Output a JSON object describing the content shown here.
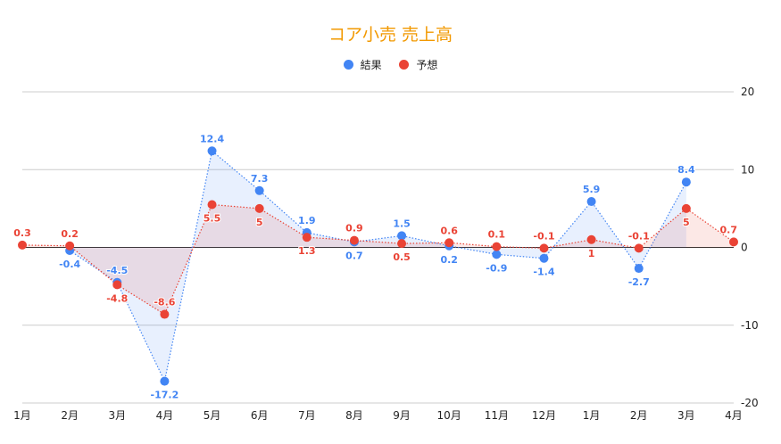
{
  "chart_data": {
    "type": "line",
    "title": "コア小売 売上高",
    "categories": [
      "1月",
      "2月",
      "3月",
      "4月",
      "5月",
      "6月",
      "7月",
      "8月",
      "9月",
      "10月",
      "11月",
      "12月",
      "1月",
      "2月",
      "3月",
      "4月"
    ],
    "series": [
      {
        "name": "結果",
        "color": "#4285f4",
        "values": [
          null,
          -0.4,
          -4.5,
          -17.2,
          12.4,
          7.3,
          1.9,
          0.7,
          1.5,
          0.2,
          -0.9,
          -1.4,
          5.9,
          -2.7,
          8.4,
          null
        ]
      },
      {
        "name": "予想",
        "color": "#ea4335",
        "values": [
          0.3,
          0.2,
          -4.8,
          -8.6,
          5.5,
          5,
          1.3,
          0.9,
          0.5,
          0.6,
          0.1,
          -0.1,
          1,
          -0.1,
          5,
          0.7
        ]
      }
    ],
    "ylim": [
      -20,
      20
    ],
    "yticks": [
      20,
      10,
      0,
      -10,
      -20
    ],
    "grid": true,
    "legend": "top",
    "area_fill": true,
    "data_labels": true
  }
}
